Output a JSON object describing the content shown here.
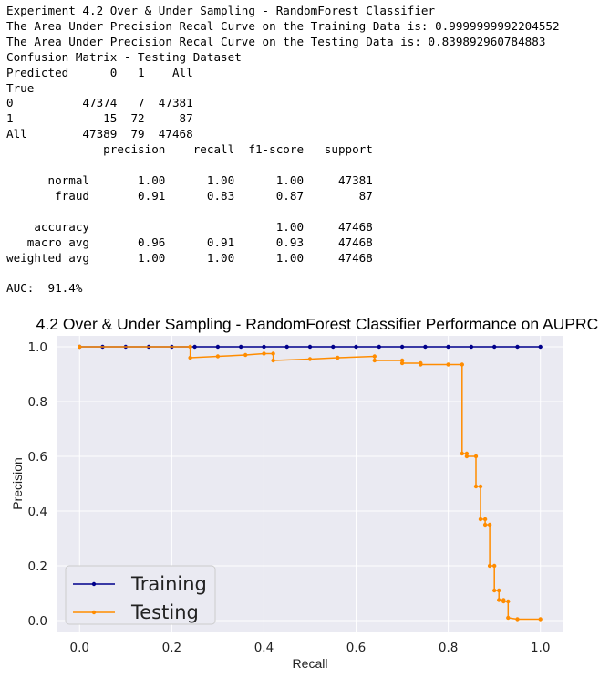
{
  "output": {
    "lines": [
      "Experiment 4.2 Over & Under Sampling - RandomForest Classifier",
      "The Area Under Precision Recal Curve on the Training Data is: 0.9999999992204552",
      "The Area Under Precision Recal Curve on the Testing Data is: 0.839892960784883",
      "Confusion Matrix - Testing Dataset",
      "Predicted      0   1    All",
      "True",
      "0          47374   7  47381",
      "1             15  72     87",
      "All        47389  79  47468",
      "              precision    recall  f1-score   support",
      "",
      "      normal       1.00      1.00      1.00     47381",
      "       fraud       0.91      0.83      0.87        87",
      "",
      "    accuracy                           1.00     47468",
      "   macro avg       0.96      0.91      0.93     47468",
      "weighted avg       1.00      1.00      1.00     47468",
      "",
      "AUC:  91.4%"
    ]
  },
  "chart_data": {
    "type": "line",
    "title": "4.2 Over & Under Sampling - RandomForest Classifier Performance on AUPRC",
    "xlabel": "Recall",
    "ylabel": "Precision",
    "xlim": [
      -0.05,
      1.05
    ],
    "ylim": [
      -0.04,
      1.04
    ],
    "xticks": [
      0.0,
      0.2,
      0.4,
      0.6,
      0.8,
      1.0
    ],
    "yticks": [
      0.0,
      0.2,
      0.4,
      0.6,
      0.8,
      1.0
    ],
    "xtick_labels": [
      "0.0",
      "0.2",
      "0.4",
      "0.6",
      "0.8",
      "1.0"
    ],
    "ytick_labels": [
      "0.0",
      "0.2",
      "0.4",
      "0.6",
      "0.8",
      "1.0"
    ],
    "grid": true,
    "legend_position": "lower-left",
    "background": "#eaeaf2",
    "series": [
      {
        "name": "Training",
        "color": "#00008b",
        "x": [
          0.0,
          0.05,
          0.1,
          0.15,
          0.2,
          0.25,
          0.3,
          0.35,
          0.4,
          0.45,
          0.5,
          0.55,
          0.6,
          0.65,
          0.7,
          0.75,
          0.8,
          0.85,
          0.9,
          0.95,
          1.0
        ],
        "y": [
          1.0,
          1.0,
          1.0,
          1.0,
          1.0,
          1.0,
          1.0,
          1.0,
          1.0,
          1.0,
          1.0,
          1.0,
          1.0,
          1.0,
          1.0,
          1.0,
          1.0,
          1.0,
          1.0,
          1.0,
          1.0
        ]
      },
      {
        "name": "Testing",
        "color": "#ff8c00",
        "x": [
          0.0,
          0.24,
          0.24,
          0.3,
          0.36,
          0.4,
          0.42,
          0.42,
          0.5,
          0.56,
          0.64,
          0.64,
          0.7,
          0.7,
          0.74,
          0.74,
          0.8,
          0.83,
          0.83,
          0.84,
          0.84,
          0.86,
          0.86,
          0.87,
          0.87,
          0.88,
          0.88,
          0.89,
          0.89,
          0.9,
          0.9,
          0.91,
          0.91,
          0.92,
          0.92,
          0.93,
          0.93,
          0.95,
          1.0
        ],
        "y": [
          1.0,
          1.0,
          0.96,
          0.965,
          0.97,
          0.975,
          0.975,
          0.95,
          0.955,
          0.96,
          0.965,
          0.95,
          0.95,
          0.94,
          0.94,
          0.935,
          0.935,
          0.935,
          0.61,
          0.61,
          0.6,
          0.6,
          0.49,
          0.49,
          0.37,
          0.37,
          0.35,
          0.35,
          0.2,
          0.2,
          0.11,
          0.11,
          0.075,
          0.075,
          0.07,
          0.07,
          0.01,
          0.005,
          0.005
        ]
      }
    ]
  }
}
